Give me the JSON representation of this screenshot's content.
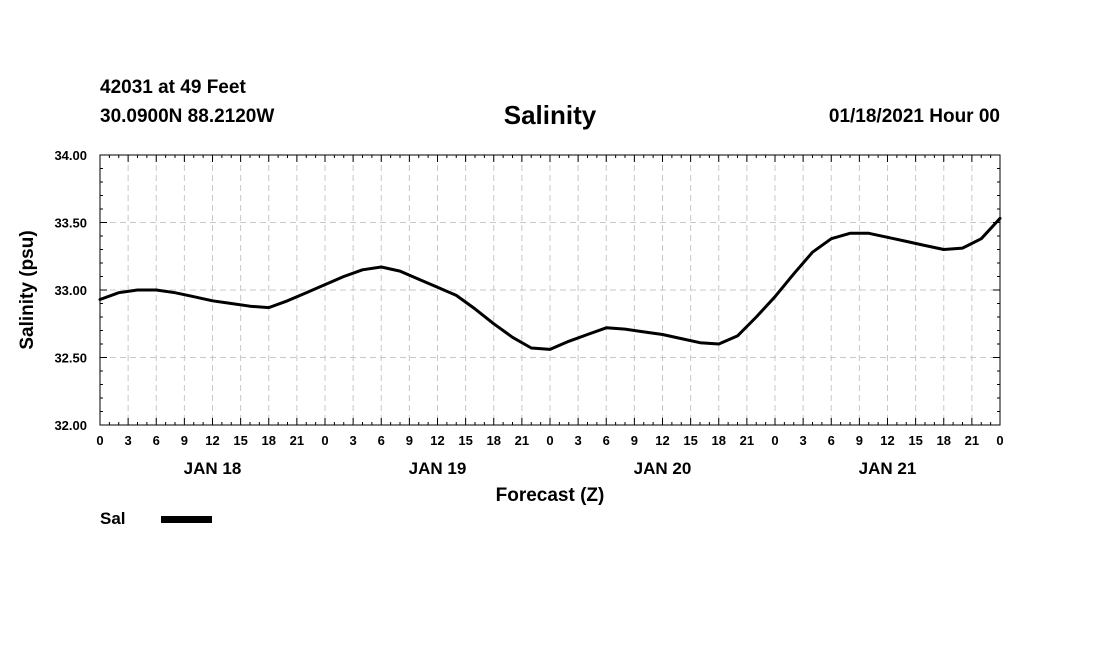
{
  "header": {
    "station_line": "42031 at 49 Feet",
    "coords_line": "30.0900N 88.2120W",
    "title": "Salinity",
    "forecast_time": "01/18/2021 Hour 00"
  },
  "legend": {
    "series_label": "Sal",
    "swatch_color": "#000000"
  },
  "chart_data": {
    "type": "line",
    "title": "Salinity",
    "xlabel": "Forecast (Z)",
    "ylabel": "Salinity (psu)",
    "xlim": [
      0,
      96
    ],
    "ylim": [
      32.0,
      34.0
    ],
    "ytick_values": [
      32.0,
      32.5,
      33.0,
      33.5,
      34.0
    ],
    "ytick_labels": [
      "32.00",
      "32.50",
      "33.00",
      "33.50",
      "34.00"
    ],
    "xtick_values": [
      0,
      3,
      6,
      9,
      12,
      15,
      18,
      21,
      24,
      27,
      30,
      33,
      36,
      39,
      42,
      45,
      48,
      51,
      54,
      57,
      60,
      63,
      66,
      69,
      72,
      75,
      78,
      81,
      84,
      87,
      90,
      93,
      96
    ],
    "xtick_labels": [
      "0",
      "3",
      "6",
      "9",
      "12",
      "15",
      "18",
      "21",
      "0",
      "3",
      "6",
      "9",
      "12",
      "15",
      "18",
      "21",
      "0",
      "3",
      "6",
      "9",
      "12",
      "15",
      "18",
      "21",
      "0",
      "3",
      "6",
      "9",
      "12",
      "15",
      "18",
      "21",
      "0"
    ],
    "day_labels": [
      {
        "label": "JAN 18",
        "hour": 12
      },
      {
        "label": "JAN 19",
        "hour": 36
      },
      {
        "label": "JAN 20",
        "hour": 60
      },
      {
        "label": "JAN 21",
        "hour": 84
      }
    ],
    "grid": true,
    "line_color": "#000000",
    "series": [
      {
        "name": "Sal",
        "x": [
          0,
          2,
          4,
          6,
          8,
          10,
          12,
          14,
          16,
          18,
          20,
          22,
          24,
          26,
          28,
          30,
          32,
          34,
          36,
          38,
          40,
          42,
          44,
          46,
          48,
          50,
          52,
          54,
          56,
          58,
          60,
          62,
          64,
          66,
          68,
          70,
          72,
          74,
          76,
          78,
          80,
          82,
          84,
          86,
          88,
          90,
          92,
          94,
          96
        ],
        "y": [
          32.93,
          32.98,
          33.0,
          33.0,
          32.98,
          32.95,
          32.92,
          32.9,
          32.88,
          32.87,
          32.92,
          32.98,
          33.04,
          33.1,
          33.15,
          33.17,
          33.14,
          33.08,
          33.02,
          32.96,
          32.86,
          32.75,
          32.65,
          32.57,
          32.56,
          32.62,
          32.67,
          32.72,
          32.71,
          32.69,
          32.67,
          32.64,
          32.61,
          32.6,
          32.66,
          32.8,
          32.95,
          33.12,
          33.28,
          33.38,
          33.42,
          33.42,
          33.39,
          33.36,
          33.33,
          33.3,
          33.31,
          33.38,
          33.53
        ]
      }
    ]
  }
}
